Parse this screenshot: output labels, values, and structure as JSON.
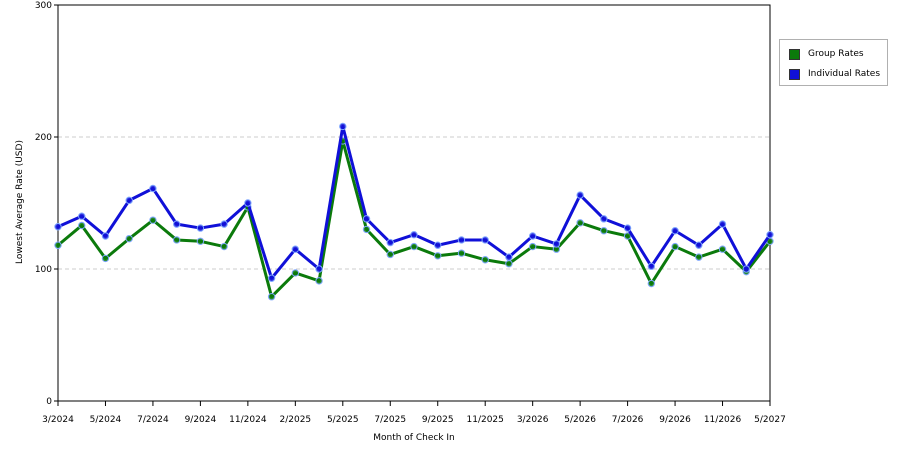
{
  "chart_data": {
    "type": "line",
    "xlabel": "Month of Check In",
    "ylabel": "Lowest Average Rate (USD)",
    "ylim": [
      0,
      300
    ],
    "yticks": [
      0,
      100,
      200,
      300
    ],
    "grid": true,
    "legend_position": "right-top",
    "x_tick_labels": [
      "3/2024",
      "5/2024",
      "7/2024",
      "9/2024",
      "11/2024",
      "2/2025",
      "5/2025",
      "7/2025",
      "9/2025",
      "11/2025",
      "3/2026",
      "5/2026",
      "7/2026",
      "9/2026",
      "11/2026",
      "5/2027"
    ],
    "x_tick_indices": [
      0,
      2,
      4,
      6,
      8,
      10,
      12,
      14,
      16,
      18,
      20,
      22,
      24,
      26,
      28,
      30
    ],
    "series": [
      {
        "name": "Group Rates",
        "color": "#0b7a0b",
        "values": [
          118,
          133,
          108,
          123,
          137,
          122,
          121,
          117,
          147,
          79,
          97,
          91,
          197,
          130,
          111,
          117,
          110,
          112,
          107,
          104,
          117,
          115,
          135,
          129,
          125,
          89,
          117,
          109,
          115,
          98,
          121
        ]
      },
      {
        "name": "Individual Rates",
        "color": "#1010d8",
        "values": [
          132,
          140,
          125,
          152,
          161,
          134,
          131,
          134,
          150,
          93,
          115,
          100,
          208,
          138,
          120,
          126,
          118,
          122,
          122,
          109,
          125,
          119,
          156,
          138,
          131,
          102,
          129,
          118,
          134,
          100,
          126
        ]
      }
    ]
  }
}
